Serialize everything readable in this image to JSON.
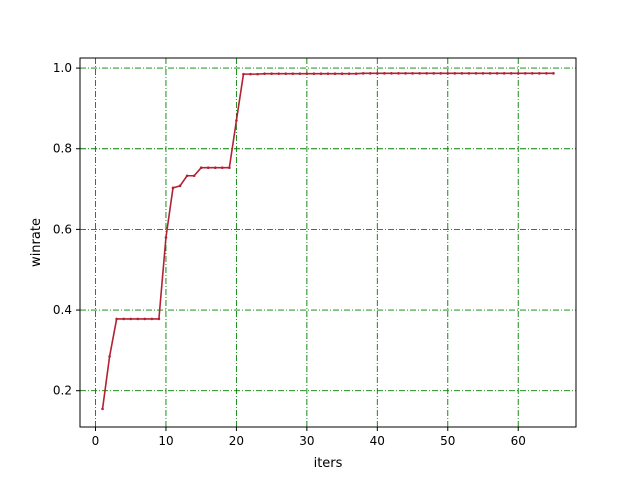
{
  "chart_data": {
    "type": "line",
    "xlabel": "iters",
    "ylabel": "winrate",
    "xlim": [
      -2.2,
      68.2
    ],
    "ylim": [
      0.11,
      1.025
    ],
    "x_ticks": [
      0,
      10,
      20,
      30,
      40,
      50,
      60
    ],
    "y_ticks": [
      0.2,
      0.4,
      0.6,
      0.8,
      1.0
    ],
    "x_tick_labels": [
      "0",
      "10",
      "20",
      "30",
      "40",
      "50",
      "60"
    ],
    "y_tick_labels": [
      "0.2",
      "0.4",
      "0.6",
      "0.8",
      "1.0"
    ],
    "grid": true,
    "grid_color": "#008000",
    "line_color": "#b22234",
    "series": [
      {
        "x": [
          1,
          2,
          3,
          4,
          5,
          6,
          7,
          8,
          9,
          10,
          11,
          12,
          13,
          14,
          15,
          16,
          17,
          18,
          19,
          20,
          21,
          22,
          23,
          24,
          25,
          26,
          27,
          28,
          29,
          30,
          31,
          32,
          33,
          34,
          35,
          36,
          37,
          38,
          39,
          40,
          41,
          42,
          43,
          44,
          45,
          46,
          47,
          48,
          49,
          50,
          51,
          52,
          53,
          54,
          55,
          56,
          57,
          58,
          59,
          60,
          61,
          62,
          63,
          64,
          65
        ],
        "values": [
          0.155,
          0.285,
          0.378,
          0.378,
          0.378,
          0.378,
          0.378,
          0.378,
          0.378,
          0.58,
          0.703,
          0.708,
          0.733,
          0.733,
          0.753,
          0.753,
          0.753,
          0.753,
          0.753,
          0.87,
          0.985,
          0.985,
          0.985,
          0.986,
          0.986,
          0.986,
          0.986,
          0.986,
          0.986,
          0.986,
          0.986,
          0.986,
          0.986,
          0.986,
          0.986,
          0.986,
          0.986,
          0.987,
          0.987,
          0.987,
          0.987,
          0.987,
          0.987,
          0.987,
          0.987,
          0.987,
          0.987,
          0.987,
          0.987,
          0.987,
          0.987,
          0.987,
          0.987,
          0.987,
          0.987,
          0.987,
          0.987,
          0.987,
          0.987,
          0.987,
          0.987,
          0.987,
          0.987,
          0.987,
          0.987
        ]
      }
    ]
  }
}
